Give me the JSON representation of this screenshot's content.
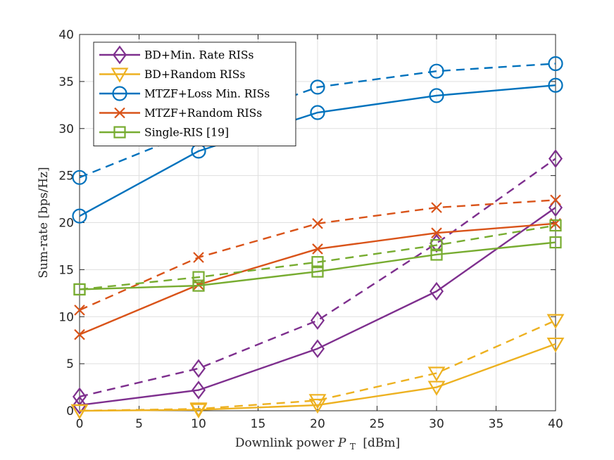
{
  "chart_data": {
    "type": "line",
    "xlabel": "Downlink power",
    "xlabel_symbol": "P",
    "xlabel_subscript": "T",
    "xlabel_unit": "[dBm]",
    "ylabel": "Sum-rate [bps/Hz]",
    "xlim": [
      0,
      40
    ],
    "ylim": [
      0,
      40
    ],
    "xticks": [
      0,
      5,
      10,
      15,
      20,
      25,
      30,
      35,
      40
    ],
    "yticks": [
      0,
      5,
      10,
      15,
      20,
      25,
      30,
      35,
      40
    ],
    "grid": true,
    "legend_position": "top-left",
    "x": [
      0,
      10,
      20,
      30,
      40
    ],
    "series": [
      {
        "name": "BD+Min. Rate RISs",
        "color": "#7E2F8E",
        "marker": "diamond",
        "solid": [
          0.6,
          2.2,
          6.6,
          12.7,
          21.6
        ],
        "dashed": [
          1.5,
          4.5,
          9.6,
          17.8,
          26.8
        ]
      },
      {
        "name": "BD+Random RISs",
        "color": "#EDB120",
        "marker": "triangle-down",
        "solid": [
          0.0,
          0.1,
          0.6,
          2.5,
          7.1
        ],
        "dashed": [
          0.0,
          0.2,
          1.1,
          4.0,
          9.6
        ]
      },
      {
        "name": "MTZF+Loss Min. RISs",
        "color": "#0072BD",
        "marker": "circle",
        "solid": [
          20.7,
          27.6,
          31.7,
          33.5,
          34.6
        ],
        "dashed": [
          24.8,
          29.9,
          34.4,
          36.1,
          36.9
        ]
      },
      {
        "name": "MTZF+Random RISs",
        "color": "#D95319",
        "marker": "x",
        "solid": [
          8.1,
          13.4,
          17.2,
          18.9,
          19.9
        ],
        "dashed": [
          10.7,
          16.3,
          19.9,
          21.6,
          22.4
        ]
      },
      {
        "name": "Single-RIS [19]",
        "color": "#77AC30",
        "marker": "square",
        "solid": [
          12.9,
          13.3,
          14.8,
          16.6,
          17.9
        ],
        "dashed": [
          12.9,
          14.2,
          15.8,
          17.6,
          19.7
        ]
      }
    ]
  }
}
